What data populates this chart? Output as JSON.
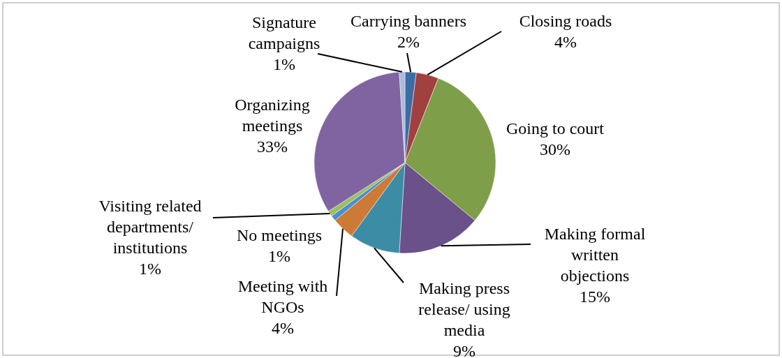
{
  "chart_data": {
    "type": "pie",
    "categories": [
      "Carrying banners",
      "Closing roads",
      "Going to court",
      "Making formal written objections",
      "Making press release/ using media",
      "Meeting with NGOs",
      "No meetings",
      "Visiting related departments/ institutions",
      "Organizing meetings",
      "Signature campaigns"
    ],
    "values": [
      2,
      4,
      30,
      15,
      9,
      4,
      1,
      1,
      33,
      1
    ],
    "value_labels": [
      "2%",
      "4%",
      "30%",
      "15%",
      "9%",
      "4%",
      "1%",
      "1%",
      "33%",
      "1%"
    ],
    "colors": [
      "#3c6ca4",
      "#a0403f",
      "#7f9e4a",
      "#6a518a",
      "#3d8ca6",
      "#cc7a35",
      "#4a8fd0",
      "#9bc05a",
      "#8064a2",
      "#a9bcd9"
    ]
  }
}
